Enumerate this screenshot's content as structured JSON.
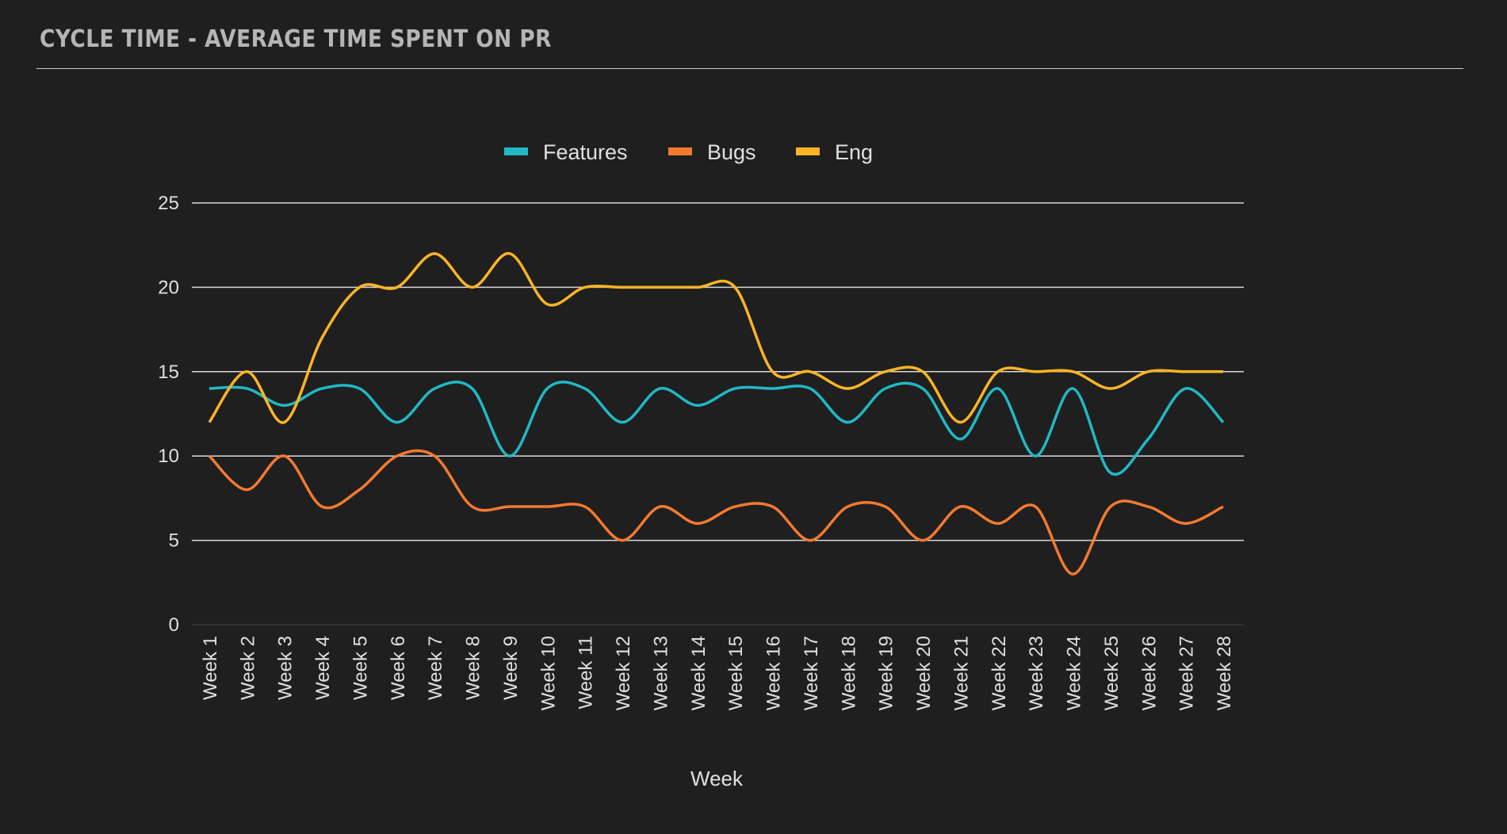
{
  "header": {
    "title": "CYCLE TIME - AVERAGE TIME SPENT ON PR"
  },
  "chart_data": {
    "type": "line",
    "smooth": true,
    "title": "",
    "xlabel": "Week",
    "ylabel": "",
    "ylim": [
      0,
      25
    ],
    "yticks": [
      0,
      5,
      10,
      15,
      20,
      25
    ],
    "grid": true,
    "legend_position": "top",
    "categories": [
      "Week 1",
      "Week 2",
      "Week 3",
      "Week 4",
      "Week 5",
      "Week 6",
      "Week 7",
      "Week 8",
      "Week 9",
      "Week 10",
      "Week 11",
      "Week 12",
      "Week 13",
      "Week 14",
      "Week 15",
      "Week 16",
      "Week 17",
      "Week 18",
      "Week 19",
      "Week 20",
      "Week 21",
      "Week 22",
      "Week 23",
      "Week 24",
      "Week 25",
      "Week 26",
      "Week 27",
      "Week 28"
    ],
    "series": [
      {
        "name": "Features",
        "color": "#22b8c4",
        "values": [
          14,
          14,
          13,
          14,
          14,
          12,
          14,
          14,
          10,
          14,
          14,
          12,
          14,
          13,
          14,
          14,
          14,
          12,
          14,
          14,
          11,
          14,
          10,
          14,
          9,
          11,
          14,
          12
        ]
      },
      {
        "name": "Bugs",
        "color": "#f47a30",
        "values": [
          10,
          8,
          10,
          7,
          8,
          10,
          10,
          7,
          7,
          7,
          7,
          5,
          7,
          6,
          7,
          7,
          5,
          7,
          7,
          5,
          7,
          6,
          7,
          3,
          7,
          7,
          6,
          7
        ]
      },
      {
        "name": "Eng",
        "color": "#fbb427",
        "values": [
          12,
          15,
          12,
          17,
          20,
          20,
          22,
          20,
          22,
          19,
          20,
          20,
          20,
          20,
          20,
          15,
          15,
          14,
          15,
          15,
          12,
          15,
          15,
          15,
          14,
          15,
          15,
          15
        ]
      }
    ]
  }
}
